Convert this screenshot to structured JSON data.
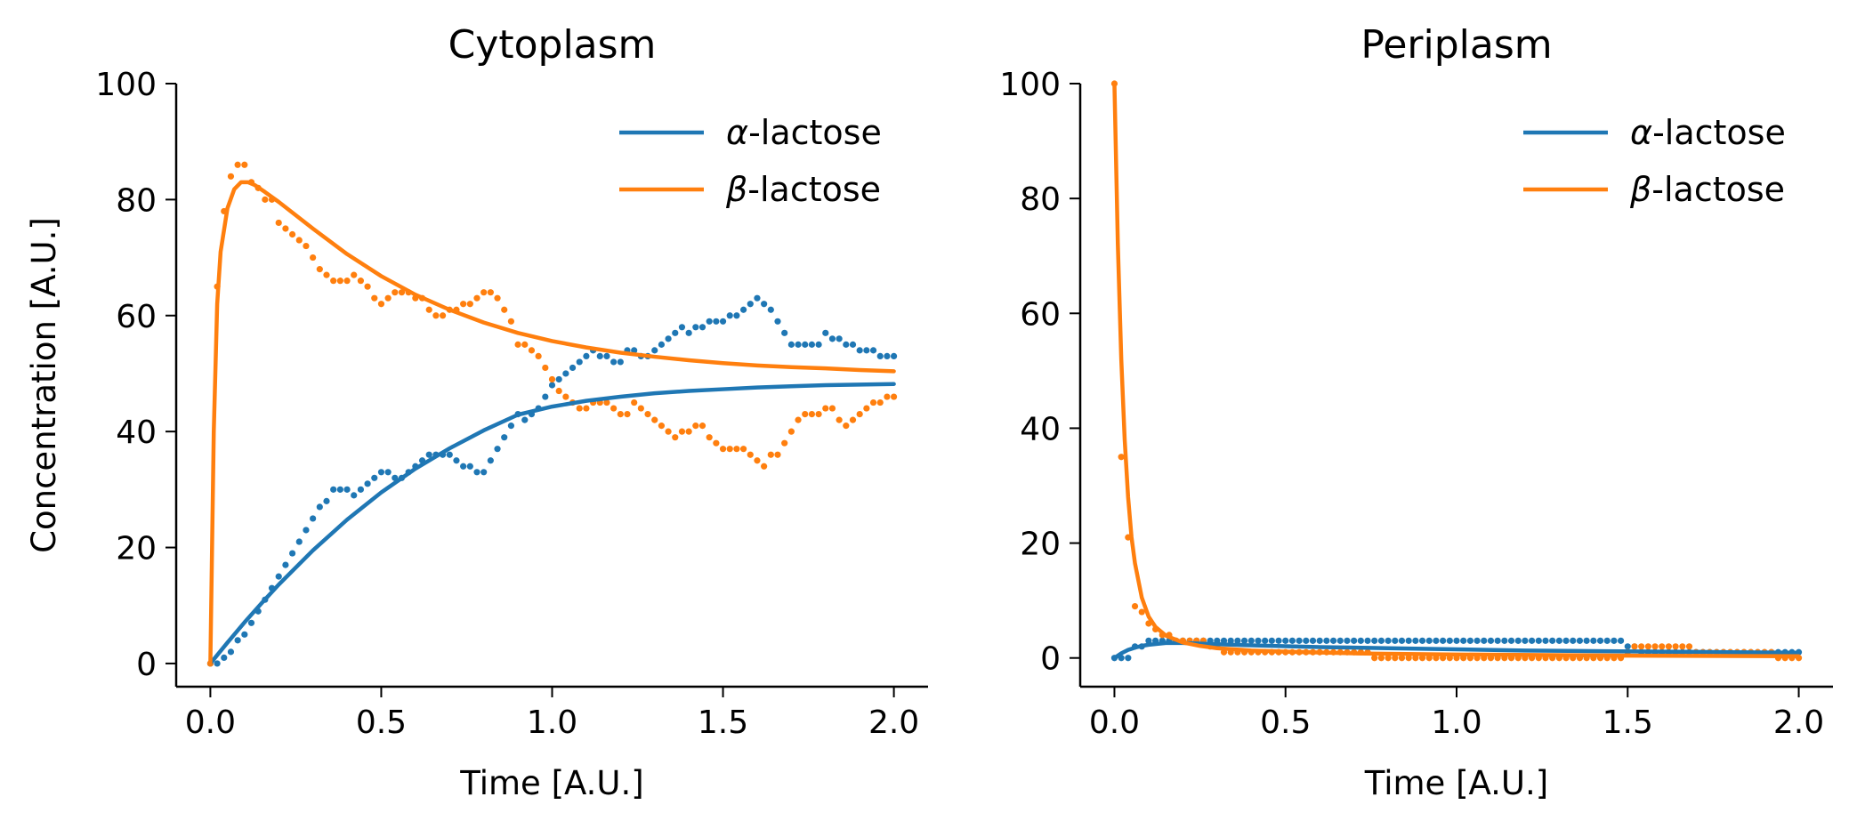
{
  "chart_data": [
    {
      "type": "line",
      "title": "Cytoplasm",
      "xlabel": "Time [A.U.]",
      "ylabel": "Concentration [A.U.]",
      "xlim": [
        -0.1,
        2.1
      ],
      "ylim": [
        -4,
        100
      ],
      "xticks": [
        0.0,
        0.5,
        1.0,
        1.5,
        2.0
      ],
      "xtick_labels": [
        "0.0",
        "0.5",
        "1.0",
        "1.5",
        "2.0"
      ],
      "yticks": [
        0,
        20,
        40,
        60,
        80,
        100
      ],
      "ytick_labels": [
        "0",
        "20",
        "40",
        "60",
        "80",
        "100"
      ],
      "grid": false,
      "legend": {
        "position": "top-right",
        "entries": [
          {
            "greek": "α",
            "rest": "-lactose",
            "color": "#1f77b4"
          },
          {
            "greek": "β",
            "rest": "-lactose",
            "color": "#ff7f0e"
          }
        ]
      },
      "series": [
        {
          "name": "α-lactose",
          "style": "line",
          "color": "#1f77b4",
          "x": [
            0,
            0.05,
            0.1,
            0.15,
            0.2,
            0.3,
            0.4,
            0.5,
            0.6,
            0.7,
            0.8,
            0.9,
            1.0,
            1.1,
            1.2,
            1.3,
            1.4,
            1.5,
            1.6,
            1.7,
            1.8,
            1.9,
            2.0
          ],
          "y": [
            0,
            3.6,
            7.1,
            10.4,
            13.6,
            19.5,
            24.8,
            29.5,
            33.6,
            37.1,
            40.2,
            42.9,
            44.3,
            45.3,
            46.0,
            46.6,
            47.0,
            47.3,
            47.6,
            47.8,
            48.0,
            48.1,
            48.2
          ]
        },
        {
          "name": "β-lactose",
          "style": "line",
          "color": "#ff7f0e",
          "x": [
            0,
            0.01,
            0.02,
            0.03,
            0.05,
            0.07,
            0.09,
            0.11,
            0.13,
            0.16,
            0.2,
            0.3,
            0.4,
            0.5,
            0.6,
            0.7,
            0.8,
            0.9,
            1.0,
            1.1,
            1.2,
            1.3,
            1.4,
            1.5,
            1.6,
            1.7,
            1.8,
            1.9,
            2.0
          ],
          "y": [
            0,
            40,
            62,
            71,
            78.5,
            81.8,
            83.0,
            83.0,
            82.5,
            81.3,
            79.6,
            75.0,
            70.6,
            66.8,
            63.6,
            61.0,
            58.8,
            57.0,
            55.6,
            54.5,
            53.6,
            52.9,
            52.3,
            51.8,
            51.4,
            51.1,
            50.9,
            50.6,
            50.4
          ]
        },
        {
          "name": "α-lactose samples",
          "style": "points",
          "color": "#1f77b4",
          "x": [
            0,
            0.02,
            0.04,
            0.06,
            0.08,
            0.1,
            0.12,
            0.14,
            0.16,
            0.18,
            0.2,
            0.22,
            0.24,
            0.26,
            0.28,
            0.3,
            0.32,
            0.34,
            0.36,
            0.38,
            0.4,
            0.42,
            0.44,
            0.46,
            0.48,
            0.5,
            0.52,
            0.54,
            0.56,
            0.58,
            0.6,
            0.62,
            0.64,
            0.66,
            0.68,
            0.7,
            0.72,
            0.74,
            0.76,
            0.78,
            0.8,
            0.82,
            0.84,
            0.86,
            0.88,
            0.9,
            0.92,
            0.94,
            0.96,
            0.98,
            1.0,
            1.02,
            1.04,
            1.06,
            1.08,
            1.1,
            1.12,
            1.14,
            1.16,
            1.18,
            1.2,
            1.22,
            1.24,
            1.26,
            1.28,
            1.3,
            1.32,
            1.34,
            1.36,
            1.38,
            1.4,
            1.42,
            1.44,
            1.46,
            1.48,
            1.5,
            1.52,
            1.54,
            1.56,
            1.58,
            1.6,
            1.62,
            1.64,
            1.66,
            1.68,
            1.7,
            1.72,
            1.74,
            1.76,
            1.78,
            1.8,
            1.82,
            1.84,
            1.86,
            1.88,
            1.9,
            1.92,
            1.94,
            1.96,
            1.98,
            2.0
          ],
          "y": [
            0,
            0,
            1,
            2,
            4,
            5,
            7,
            9,
            11,
            13,
            15,
            17,
            19,
            21,
            23,
            25,
            27,
            28,
            30,
            30,
            30,
            29,
            30,
            31,
            32,
            33,
            33,
            32,
            32,
            33,
            34,
            35,
            36,
            36,
            36,
            36,
            35,
            34,
            34,
            33,
            33,
            35,
            37,
            39,
            41,
            43,
            42,
            43,
            44,
            46,
            48,
            49,
            50,
            51,
            52,
            53,
            54,
            53,
            53,
            52,
            52,
            54,
            54,
            53,
            53,
            54,
            55,
            56,
            57,
            58,
            57,
            58,
            58,
            59,
            59,
            59,
            60,
            60,
            61,
            62,
            63,
            62,
            61,
            59,
            57,
            55,
            55,
            55,
            55,
            55,
            57,
            56,
            56,
            55,
            55,
            54,
            54,
            54,
            53,
            53,
            53
          ]
        },
        {
          "name": "β-lactose samples",
          "style": "points",
          "color": "#ff7f0e",
          "x": [
            0,
            0.02,
            0.04,
            0.06,
            0.08,
            0.1,
            0.12,
            0.14,
            0.16,
            0.18,
            0.2,
            0.22,
            0.24,
            0.26,
            0.28,
            0.3,
            0.32,
            0.34,
            0.36,
            0.38,
            0.4,
            0.42,
            0.44,
            0.46,
            0.48,
            0.5,
            0.52,
            0.54,
            0.56,
            0.58,
            0.6,
            0.62,
            0.64,
            0.66,
            0.68,
            0.7,
            0.72,
            0.74,
            0.76,
            0.78,
            0.8,
            0.82,
            0.84,
            0.86,
            0.88,
            0.9,
            0.92,
            0.94,
            0.96,
            0.98,
            1.0,
            1.02,
            1.04,
            1.06,
            1.08,
            1.1,
            1.12,
            1.14,
            1.16,
            1.18,
            1.2,
            1.22,
            1.24,
            1.26,
            1.28,
            1.3,
            1.32,
            1.34,
            1.36,
            1.38,
            1.4,
            1.42,
            1.44,
            1.46,
            1.48,
            1.5,
            1.52,
            1.54,
            1.56,
            1.58,
            1.6,
            1.62,
            1.64,
            1.66,
            1.68,
            1.7,
            1.72,
            1.74,
            1.76,
            1.78,
            1.8,
            1.82,
            1.84,
            1.86,
            1.88,
            1.9,
            1.92,
            1.94,
            1.96,
            1.98,
            2.0
          ],
          "y": [
            0,
            65,
            78,
            84,
            86,
            86,
            83,
            82,
            80,
            80,
            76,
            75,
            74,
            73,
            72,
            70,
            68,
            67,
            66,
            66,
            66,
            67,
            66,
            65,
            63,
            62,
            63,
            64,
            64,
            64,
            63,
            63,
            61,
            60,
            60,
            61,
            61,
            62,
            62,
            63,
            64,
            64,
            63,
            61,
            59,
            55,
            55,
            54,
            53,
            51,
            49,
            47,
            46,
            45,
            44,
            44,
            45,
            45,
            45,
            44,
            43,
            43,
            45,
            44,
            43,
            42,
            41,
            40,
            39,
            40,
            40,
            41,
            41,
            39,
            38,
            37,
            37,
            37,
            37,
            36,
            35,
            34,
            36,
            36,
            38,
            40,
            42,
            43,
            43,
            43,
            44,
            44,
            42,
            41,
            42,
            43,
            44,
            45,
            45,
            46,
            46
          ]
        }
      ]
    },
    {
      "type": "line",
      "title": "Periplasm",
      "xlabel": "Time [A.U.]",
      "ylabel": "",
      "xlim": [
        -0.1,
        2.1
      ],
      "ylim": [
        -5,
        100
      ],
      "xticks": [
        0.0,
        0.5,
        1.0,
        1.5,
        2.0
      ],
      "xtick_labels": [
        "0.0",
        "0.5",
        "1.0",
        "1.5",
        "2.0"
      ],
      "yticks": [
        0,
        20,
        40,
        60,
        80,
        100
      ],
      "ytick_labels": [
        "0",
        "20",
        "40",
        "60",
        "80",
        "100"
      ],
      "grid": false,
      "legend": {
        "position": "top-right",
        "entries": [
          {
            "greek": "α",
            "rest": "-lactose",
            "color": "#1f77b4"
          },
          {
            "greek": "β",
            "rest": "-lactose",
            "color": "#ff7f0e"
          }
        ]
      },
      "series": [
        {
          "name": "α-lactose",
          "style": "line",
          "color": "#1f77b4",
          "x": [
            0,
            0.02,
            0.04,
            0.06,
            0.08,
            0.1,
            0.15,
            0.2,
            0.3,
            0.4,
            0.6,
            0.8,
            1.0,
            1.2,
            1.4,
            1.6,
            1.8,
            2.0
          ],
          "y": [
            0,
            0.8,
            1.4,
            1.8,
            2.1,
            2.3,
            2.6,
            2.6,
            2.4,
            2.2,
            1.9,
            1.7,
            1.5,
            1.3,
            1.2,
            1.1,
            1.0,
            0.9
          ]
        },
        {
          "name": "β-lactose",
          "style": "line",
          "color": "#ff7f0e",
          "x": [
            0,
            0.01,
            0.02,
            0.03,
            0.04,
            0.05,
            0.06,
            0.08,
            0.1,
            0.12,
            0.15,
            0.2,
            0.25,
            0.3,
            0.4,
            0.5,
            0.7,
            1.0,
            1.5,
            2.0
          ],
          "y": [
            100,
            72,
            52,
            38,
            28,
            21,
            16.5,
            10.5,
            7.2,
            5.4,
            3.9,
            2.7,
            2.1,
            1.7,
            1.3,
            1.1,
            0.8,
            0.6,
            0.4,
            0.3
          ]
        },
        {
          "name": "α-lactose samples",
          "style": "points",
          "color": "#1f77b4",
          "x": [
            0,
            0.02,
            0.04,
            0.06,
            0.08,
            0.1,
            0.12,
            0.14,
            0.16,
            0.18,
            0.2,
            0.22,
            0.24,
            0.26,
            0.28,
            0.3,
            0.32,
            0.34,
            0.36,
            0.38,
            0.4,
            0.42,
            0.44,
            0.46,
            0.48,
            0.5,
            0.52,
            0.54,
            0.56,
            0.58,
            0.6,
            0.62,
            0.64,
            0.66,
            0.68,
            0.7,
            0.72,
            0.74,
            0.76,
            0.78,
            0.8,
            0.82,
            0.84,
            0.86,
            0.88,
            0.9,
            0.92,
            0.94,
            0.96,
            0.98,
            1.0,
            1.02,
            1.04,
            1.06,
            1.08,
            1.1,
            1.12,
            1.14,
            1.16,
            1.18,
            1.2,
            1.22,
            1.24,
            1.26,
            1.28,
            1.3,
            1.32,
            1.34,
            1.36,
            1.38,
            1.4,
            1.42,
            1.44,
            1.46,
            1.48,
            1.5,
            1.52,
            1.54,
            1.56,
            1.58,
            1.6,
            1.62,
            1.64,
            1.66,
            1.68,
            1.7,
            1.72,
            1.74,
            1.76,
            1.78,
            1.8,
            1.82,
            1.84,
            1.86,
            1.88,
            1.9,
            1.92,
            1.94,
            1.96,
            1.98,
            2.0
          ],
          "y": [
            0,
            0,
            0,
            2,
            2,
            3,
            3,
            3,
            3,
            3,
            3,
            3,
            3,
            3,
            3,
            3,
            3,
            3,
            3,
            3,
            3,
            3,
            3,
            3,
            3,
            3,
            3,
            3,
            3,
            3,
            3,
            3,
            3,
            3,
            3,
            3,
            3,
            3,
            3,
            3,
            3,
            3,
            3,
            3,
            3,
            3,
            3,
            3,
            3,
            3,
            3,
            3,
            3,
            3,
            3,
            3,
            3,
            3,
            3,
            3,
            3,
            3,
            3,
            3,
            3,
            3,
            3,
            3,
            3,
            3,
            3,
            3,
            3,
            3,
            3,
            2,
            2,
            1,
            1,
            1,
            1,
            1,
            1,
            1,
            1,
            1,
            1,
            1,
            1,
            1,
            1,
            1,
            1,
            1,
            1,
            1,
            1,
            1,
            1,
            1,
            1
          ]
        },
        {
          "name": "β-lactose samples",
          "style": "points",
          "color": "#ff7f0e",
          "x": [
            0,
            0.02,
            0.04,
            0.06,
            0.08,
            0.1,
            0.12,
            0.14,
            0.16,
            0.18,
            0.2,
            0.22,
            0.24,
            0.26,
            0.28,
            0.3,
            0.32,
            0.34,
            0.36,
            0.38,
            0.4,
            0.42,
            0.44,
            0.46,
            0.48,
            0.5,
            0.52,
            0.54,
            0.56,
            0.58,
            0.6,
            0.62,
            0.64,
            0.66,
            0.68,
            0.7,
            0.72,
            0.74,
            0.76,
            0.78,
            0.8,
            0.82,
            0.84,
            0.86,
            0.88,
            0.9,
            0.92,
            0.94,
            0.96,
            0.98,
            1.0,
            1.02,
            1.04,
            1.06,
            1.08,
            1.1,
            1.12,
            1.14,
            1.16,
            1.18,
            1.2,
            1.22,
            1.24,
            1.26,
            1.28,
            1.3,
            1.32,
            1.34,
            1.36,
            1.38,
            1.4,
            1.42,
            1.44,
            1.46,
            1.48,
            1.5,
            1.52,
            1.54,
            1.56,
            1.58,
            1.6,
            1.62,
            1.64,
            1.66,
            1.68,
            1.7,
            1.72,
            1.74,
            1.76,
            1.78,
            1.8,
            1.82,
            1.84,
            1.86,
            1.88,
            1.9,
            1.92,
            1.94,
            1.96,
            1.98,
            2.0
          ],
          "y": [
            100,
            35,
            21,
            9,
            8,
            6,
            5,
            4,
            4,
            3,
            3,
            3,
            3,
            3,
            2,
            2,
            1,
            1,
            1,
            1,
            1,
            1,
            1,
            1,
            1,
            1,
            1,
            1,
            1,
            1,
            1,
            1,
            1,
            1,
            1,
            1,
            1,
            1,
            0,
            0,
            0,
            0,
            0,
            0,
            0,
            0,
            0,
            0,
            0,
            0,
            0,
            0,
            0,
            0,
            0,
            0,
            0,
            0,
            0,
            0,
            0,
            0,
            0,
            0,
            0,
            0,
            0,
            0,
            0,
            0,
            0,
            0,
            0,
            0,
            0,
            1,
            2,
            2,
            2,
            2,
            2,
            2,
            2,
            2,
            2,
            1,
            1,
            1,
            1,
            1,
            1,
            1,
            1,
            1,
            1,
            1,
            1,
            0,
            0,
            0,
            0
          ]
        }
      ]
    }
  ]
}
